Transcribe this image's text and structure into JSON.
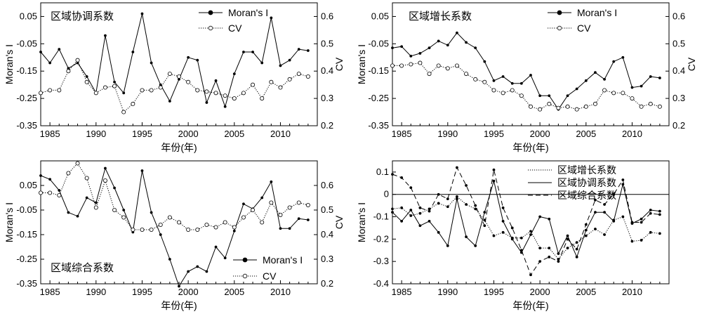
{
  "chart_data": [
    {
      "type": "line",
      "title": "区域协调系数",
      "xlabel": "年份(年)",
      "ylabel": "Moran's I",
      "y2label": "CV",
      "xlim": [
        1984,
        2014
      ],
      "ylim": [
        -0.35,
        0.1
      ],
      "y2lim": [
        0.2,
        0.65
      ],
      "xticks": [
        1985,
        1990,
        1995,
        2000,
        2005,
        2010
      ],
      "yticks": [
        0.05,
        -0.05,
        -0.15,
        -0.25,
        -0.35
      ],
      "yticklabels": [
        "0.05",
        "-0.05",
        "-0.15",
        "-0.25",
        "-0.35"
      ],
      "y2ticks": [
        0.6,
        0.5,
        0.4,
        0.3,
        0.2
      ],
      "y2ticklabels": [
        "0.6",
        "0.5",
        "0.4",
        "0.3",
        "0.2"
      ],
      "legend_position": "top-right",
      "x": [
        1984,
        1985,
        1986,
        1987,
        1988,
        1989,
        1990,
        1991,
        1992,
        1993,
        1994,
        1995,
        1996,
        1997,
        1998,
        1999,
        2000,
        2001,
        2002,
        2003,
        2004,
        2005,
        2006,
        2007,
        2008,
        2009,
        2010,
        2011,
        2012,
        2013
      ],
      "series": [
        {
          "name": "Moran's I",
          "axis": "left",
          "marker": "filled",
          "style": "solid",
          "values": [
            -0.08,
            -0.12,
            -0.07,
            -0.14,
            -0.12,
            -0.17,
            -0.23,
            -0.02,
            -0.19,
            -0.23,
            -0.08,
            0.06,
            -0.12,
            -0.2,
            -0.26,
            -0.18,
            -0.1,
            -0.11,
            -0.265,
            -0.185,
            -0.28,
            -0.16,
            -0.08,
            -0.08,
            -0.12,
            0.045,
            -0.13,
            -0.11,
            -0.07,
            -0.075
          ]
        },
        {
          "name": "CV",
          "axis": "right",
          "marker": "open",
          "style": "dotted",
          "values": [
            0.32,
            0.33,
            0.33,
            0.4,
            0.44,
            0.36,
            0.32,
            0.34,
            0.345,
            0.25,
            0.28,
            0.33,
            0.33,
            0.34,
            0.39,
            0.38,
            0.36,
            0.33,
            0.325,
            0.32,
            0.31,
            0.3,
            0.32,
            0.35,
            0.3,
            0.36,
            0.34,
            0.37,
            0.39,
            0.38
          ]
        }
      ]
    },
    {
      "type": "line",
      "title": "区域增长系数",
      "xlabel": "年份(年)",
      "ylabel": "Moran's I",
      "y2label": "CV",
      "xlim": [
        1984,
        2014
      ],
      "ylim": [
        -0.35,
        0.1
      ],
      "y2lim": [
        0.2,
        0.65
      ],
      "xticks": [
        1985,
        1990,
        1995,
        2000,
        2005,
        2010
      ],
      "yticks": [
        0.05,
        -0.05,
        -0.15,
        -0.25,
        -0.35
      ],
      "yticklabels": [
        "0.05",
        "-0.05",
        "-0.15",
        "-0.25",
        "-0.35"
      ],
      "y2ticks": [
        0.6,
        0.5,
        0.4,
        0.3,
        0.2
      ],
      "y2ticklabels": [
        "0.6",
        "0.5",
        "0.4",
        "0.3",
        "0.2"
      ],
      "legend_position": "top-right",
      "x": [
        1984,
        1985,
        1986,
        1987,
        1988,
        1989,
        1990,
        1991,
        1992,
        1993,
        1994,
        1995,
        1996,
        1997,
        1998,
        1999,
        2000,
        2001,
        2002,
        2003,
        2004,
        2005,
        2006,
        2007,
        2008,
        2009,
        2010,
        2011,
        2012,
        2013
      ],
      "series": [
        {
          "name": "Moran's I",
          "axis": "left",
          "marker": "filled",
          "style": "solid",
          "values": [
            -0.065,
            -0.06,
            -0.095,
            -0.085,
            -0.065,
            -0.04,
            -0.055,
            -0.01,
            -0.045,
            -0.065,
            -0.115,
            -0.185,
            -0.17,
            -0.195,
            -0.195,
            -0.165,
            -0.24,
            -0.24,
            -0.29,
            -0.24,
            -0.215,
            -0.185,
            -0.155,
            -0.18,
            -0.115,
            -0.1,
            -0.21,
            -0.205,
            -0.17,
            -0.175
          ]
        },
        {
          "name": "CV",
          "axis": "right",
          "marker": "open",
          "style": "dotted",
          "values": [
            0.42,
            0.42,
            0.425,
            0.43,
            0.39,
            0.42,
            0.41,
            0.42,
            0.39,
            0.37,
            0.36,
            0.33,
            0.32,
            0.33,
            0.31,
            0.27,
            0.26,
            0.28,
            0.265,
            0.27,
            0.26,
            0.27,
            0.28,
            0.33,
            0.32,
            0.32,
            0.3,
            0.27,
            0.28,
            0.27
          ]
        }
      ]
    },
    {
      "type": "line",
      "title": "区域综合系数",
      "xlabel": "年份(年)",
      "ylabel": "Moran's I",
      "y2label": "CV",
      "xlim": [
        1984,
        2014
      ],
      "ylim": [
        -0.35,
        0.15
      ],
      "y2lim": [
        0.2,
        0.7
      ],
      "xticks": [
        1985,
        1990,
        1995,
        2000,
        2005,
        2010
      ],
      "yticks": [
        0.05,
        -0.05,
        -0.15,
        -0.25,
        -0.35
      ],
      "yticklabels": [
        "0.05",
        "-0.05",
        "-0.15",
        "-0.25",
        "-0.35"
      ],
      "y2ticks": [
        0.6,
        0.5,
        0.4,
        0.3,
        0.2
      ],
      "y2ticklabels": [
        "0.6",
        "0.5",
        "0.4",
        "0.3",
        "0.2"
      ],
      "legend_position": "bottom-right",
      "x": [
        1984,
        1985,
        1986,
        1987,
        1988,
        1989,
        1990,
        1991,
        1992,
        1993,
        1994,
        1995,
        1996,
        1997,
        1998,
        1999,
        2000,
        2001,
        2002,
        2003,
        2004,
        2005,
        2006,
        2007,
        2008,
        2009,
        2010,
        2011,
        2012,
        2013
      ],
      "series": [
        {
          "name": "Moran's I",
          "axis": "left",
          "marker": "filled",
          "style": "solid",
          "values": [
            0.09,
            0.075,
            0.03,
            -0.06,
            -0.075,
            0.0,
            -0.02,
            0.12,
            0.04,
            -0.05,
            -0.14,
            0.11,
            -0.06,
            -0.15,
            -0.25,
            -0.36,
            -0.3,
            -0.28,
            -0.3,
            -0.2,
            -0.245,
            -0.135,
            -0.025,
            -0.045,
            -0.0,
            0.065,
            -0.125,
            -0.125,
            -0.085,
            -0.09
          ]
        },
        {
          "name": "CV",
          "axis": "right",
          "marker": "open",
          "style": "dotted",
          "values": [
            0.57,
            0.57,
            0.56,
            0.65,
            0.69,
            0.63,
            0.51,
            0.62,
            0.5,
            0.47,
            0.42,
            0.42,
            0.42,
            0.44,
            0.47,
            0.45,
            0.42,
            0.42,
            0.44,
            0.43,
            0.45,
            0.43,
            0.47,
            0.5,
            0.45,
            0.53,
            0.48,
            0.51,
            0.53,
            0.52
          ]
        }
      ]
    },
    {
      "type": "line",
      "title": "",
      "xlabel": "年份(年)",
      "ylabel": "Moran's I",
      "xlim": [
        1984,
        2014
      ],
      "ylim": [
        -0.4,
        0.15
      ],
      "xticks": [
        1985,
        1990,
        1995,
        2000,
        2005,
        2010
      ],
      "yticks": [
        0.1,
        0,
        -0.1,
        -0.2,
        -0.3,
        -0.4
      ],
      "yticklabels": [
        "0.1",
        "0",
        "-0.1",
        "-0.2",
        "-0.3",
        "-0.4"
      ],
      "reference_line": 0,
      "legend_position": "top-center",
      "x": [
        1984,
        1985,
        1986,
        1987,
        1988,
        1989,
        1990,
        1991,
        1992,
        1993,
        1994,
        1995,
        1996,
        1997,
        1998,
        1999,
        2000,
        2001,
        2002,
        2003,
        2004,
        2005,
        2006,
        2007,
        2008,
        2009,
        2010,
        2011,
        2012,
        2013
      ],
      "series": [
        {
          "name": "区域增长系数",
          "marker": "filled",
          "style": "dotted",
          "values": [
            -0.065,
            -0.06,
            -0.095,
            -0.085,
            -0.065,
            -0.04,
            -0.055,
            -0.01,
            -0.045,
            -0.065,
            -0.115,
            -0.185,
            -0.17,
            -0.195,
            -0.195,
            -0.165,
            -0.24,
            -0.24,
            -0.29,
            -0.24,
            -0.215,
            -0.185,
            -0.155,
            -0.18,
            -0.115,
            -0.1,
            -0.21,
            -0.205,
            -0.17,
            -0.175
          ]
        },
        {
          "name": "区域协调系数",
          "marker": "filled",
          "style": "solid",
          "values": [
            -0.08,
            -0.12,
            -0.07,
            -0.14,
            -0.12,
            -0.17,
            -0.23,
            -0.02,
            -0.19,
            -0.23,
            -0.08,
            0.06,
            -0.12,
            -0.2,
            -0.26,
            -0.18,
            -0.1,
            -0.11,
            -0.265,
            -0.185,
            -0.28,
            -0.16,
            -0.08,
            -0.08,
            -0.12,
            0.045,
            -0.13,
            -0.11,
            -0.07,
            -0.075
          ]
        },
        {
          "name": "区域综合系数",
          "marker": "filled",
          "style": "dashed",
          "values": [
            0.09,
            0.075,
            0.03,
            -0.06,
            -0.075,
            0.0,
            -0.02,
            0.12,
            0.04,
            -0.05,
            -0.14,
            0.11,
            -0.06,
            -0.15,
            -0.25,
            -0.36,
            -0.3,
            -0.28,
            -0.3,
            -0.2,
            -0.245,
            -0.135,
            -0.025,
            -0.045,
            -0.0,
            0.065,
            -0.125,
            -0.125,
            -0.085,
            -0.09
          ]
        }
      ]
    }
  ]
}
